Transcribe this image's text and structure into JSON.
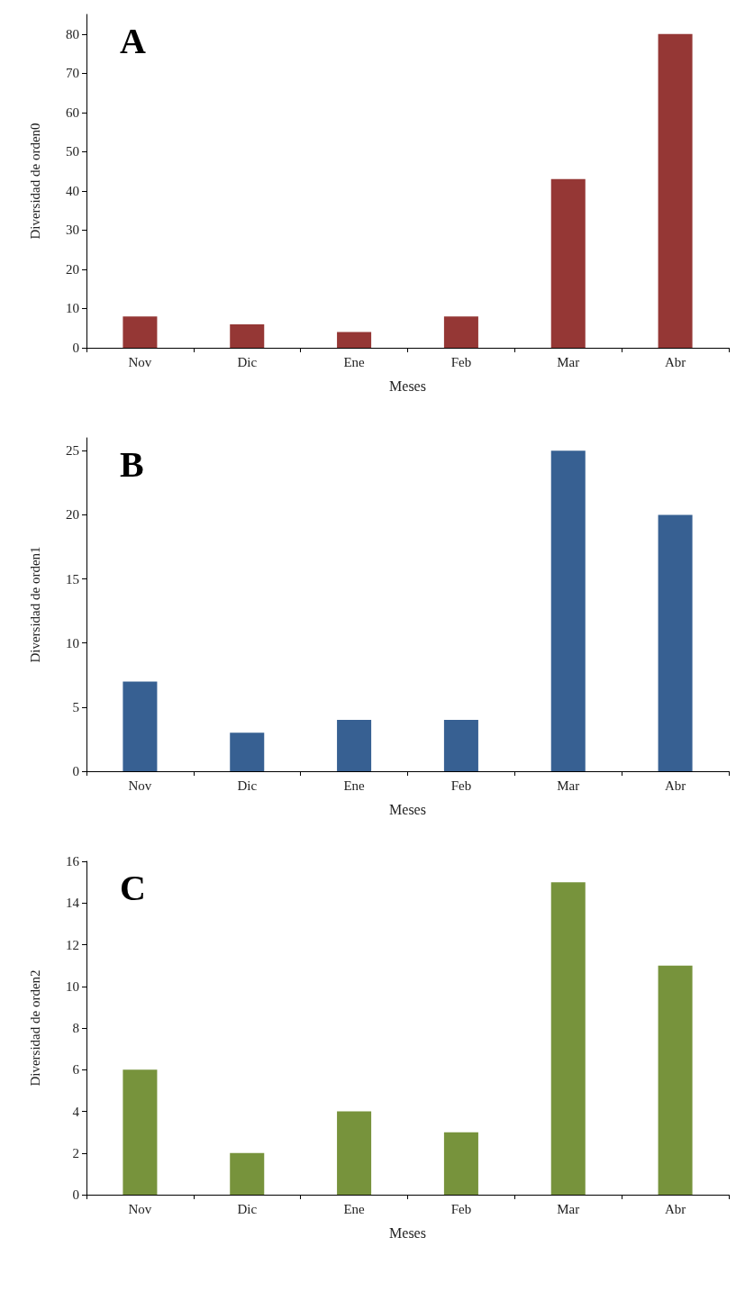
{
  "chart_data": [
    {
      "type": "bar",
      "title": "A",
      "xlabel": "Meses",
      "ylabel": "Diversidad de orden0",
      "categories": [
        "Nov",
        "Dic",
        "Ene",
        "Feb",
        "Mar",
        "Abr"
      ],
      "values": [
        8,
        6,
        4,
        8,
        43,
        80
      ],
      "color": "#953735",
      "ylim": [
        0,
        85
      ],
      "yticks": [
        0,
        10,
        20,
        30,
        40,
        50,
        60,
        70,
        80
      ]
    },
    {
      "type": "bar",
      "title": "B",
      "xlabel": "Meses",
      "ylabel": "Diversidad de orden1",
      "categories": [
        "Nov",
        "Dic",
        "Ene",
        "Feb",
        "Mar",
        "Abr"
      ],
      "values": [
        7,
        3,
        4,
        4,
        25,
        20
      ],
      "color": "#376092",
      "ylim": [
        0,
        26
      ],
      "yticks": [
        0,
        5,
        10,
        15,
        20,
        25
      ]
    },
    {
      "type": "bar",
      "title": "C",
      "xlabel": "Meses",
      "ylabel": "Diversidad de orden2",
      "categories": [
        "Nov",
        "Dic",
        "Ene",
        "Feb",
        "Mar",
        "Abr"
      ],
      "values": [
        6,
        2,
        4,
        3,
        15,
        11
      ],
      "color": "#77933c",
      "ylim": [
        0,
        16
      ],
      "yticks": [
        0,
        2,
        4,
        6,
        8,
        10,
        12,
        14,
        16
      ]
    }
  ]
}
